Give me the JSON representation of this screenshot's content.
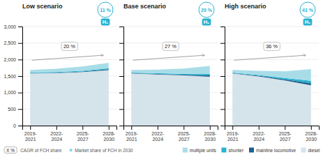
{
  "chart_data": [
    {
      "type": "area",
      "stacked": true,
      "title": "Low scenario",
      "categories": [
        "2019-\n2021",
        "2022-\n2024",
        "2025-\n2027",
        "2028-\n2030"
      ],
      "series": [
        {
          "name": "diesel",
          "color": "#d5e3ea",
          "values": [
            1580,
            1590,
            1620,
            1680
          ]
        },
        {
          "name": "mainline locomotive",
          "color": "#1f5f8b",
          "values": [
            10,
            12,
            18,
            28
          ]
        },
        {
          "name": "shunter",
          "color": "#29b2d0",
          "values": [
            15,
            18,
            22,
            30
          ]
        },
        {
          "name": "multiple units",
          "color": "#a8dde8",
          "values": [
            80,
            100,
            130,
            165
          ]
        }
      ],
      "ylim": [
        0,
        3000
      ],
      "yticks": [
        0,
        500,
        {
          "value": 1000,
          "label": "1,000"
        },
        {
          "value": 1500,
          "label": "1,500"
        },
        {
          "value": 2000,
          "label": "2,000"
        },
        {
          "value": 2500,
          "label": "2,500"
        },
        {
          "value": 3000,
          "label": "3,000"
        }
      ],
      "grid": true,
      "legend": "bottom",
      "annotations": [
        {
          "text": "20 %"
        },
        {
          "text": "11 %",
          "color": "#29b2d0"
        },
        {
          "text": "H₂",
          "color": "#29b2d0"
        },
        {
          "text": "X %"
        },
        {
          "text": "CAGR of FCH share"
        },
        {
          "text": "●",
          "color": "#7fd4e4"
        },
        {
          "text": "Market share of FCH in 2030"
        }
      ]
    },
    {
      "type": "area",
      "stacked": true,
      "title": "Base scenario",
      "categories": [
        "2019-\n2021",
        "2022-\n2024",
        "2025-\n2027",
        "2028-\n2030"
      ],
      "series": [
        {
          "name": "diesel",
          "color": "#d5e3ea",
          "values": [
            1580,
            1550,
            1520,
            1480
          ]
        },
        {
          "name": "mainline locomotive",
          "color": "#1f5f8b",
          "values": [
            10,
            14,
            22,
            40
          ]
        },
        {
          "name": "shunter",
          "color": "#29b2d0",
          "values": [
            15,
            20,
            28,
            45
          ]
        },
        {
          "name": "multiple units",
          "color": "#a8dde8",
          "values": [
            80,
            110,
            155,
            240
          ]
        }
      ],
      "ylim": [
        0,
        3000
      ],
      "yticks": [
        0,
        500,
        1000,
        1500,
        2000,
        2500,
        3000
      ],
      "grid": true,
      "tick_labels": "x",
      "annotations": [
        {
          "text": "27 %"
        },
        {
          "text": "20 %",
          "color": "#29b2d0"
        },
        {
          "text": "H₂",
          "color": "#29b2d0"
        }
      ]
    },
    {
      "type": "area",
      "stacked": true,
      "title": "High scenario",
      "categories": [
        "2019-\n2021",
        "2022-\n2024",
        "2025-\n2027",
        "2028-\n2030"
      ],
      "series": [
        {
          "name": "diesel",
          "color": "#d5e3ea",
          "values": [
            1580,
            1490,
            1370,
            1220
          ]
        },
        {
          "name": "mainline locomotive",
          "color": "#1f5f8b",
          "values": [
            10,
            18,
            32,
            65
          ]
        },
        {
          "name": "shunter",
          "color": "#29b2d0",
          "values": [
            15,
            22,
            38,
            75
          ]
        },
        {
          "name": "multiple units",
          "color": "#a8dde8",
          "values": [
            80,
            130,
            200,
            350
          ]
        }
      ],
      "ylim": [
        0,
        3000
      ],
      "yticks": [
        0,
        500,
        1000,
        1500,
        2000,
        2500,
        3000
      ],
      "grid": true,
      "tick_labels": "x",
      "annotations": [
        {
          "text": "36 %"
        },
        {
          "text": "41 %",
          "color": "#29b2d0"
        },
        {
          "text": "H₂",
          "color": "#29b2d0"
        }
      ]
    }
  ]
}
